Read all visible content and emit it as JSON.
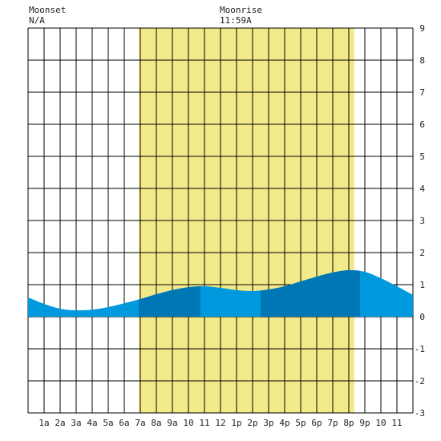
{
  "header": {
    "moonset_label": "Moonset",
    "moonset_time": "N/A",
    "moonrise_label": "Moonrise",
    "moonrise_time": "11:59A"
  },
  "chart_data": {
    "type": "area",
    "title": "",
    "xlabel": "",
    "ylabel": "",
    "x_unit": "hour of day",
    "xlim": [
      -1,
      23
    ],
    "ylim": [
      -3,
      9
    ],
    "x_tick_labels": [
      "1a",
      "2a",
      "3a",
      "4a",
      "5a",
      "6a",
      "7a",
      "8a",
      "9a",
      "10",
      "11",
      "12",
      "1p",
      "2p",
      "3p",
      "4p",
      "5p",
      "6p",
      "7p",
      "8p",
      "9p",
      "10",
      "11"
    ],
    "y_tick_labels": [
      "-3",
      "-2",
      "-1",
      "0",
      "1",
      "2",
      "3",
      "4",
      "5",
      "6",
      "7",
      "8",
      "9"
    ],
    "grid": true,
    "daylight": {
      "start": 5.9,
      "end": 19.35,
      "color": "#f2ea8a"
    },
    "series": [
      {
        "x": [
          -1,
          0,
          1,
          2,
          3,
          4,
          5,
          6,
          7,
          8,
          9,
          10,
          11,
          12,
          13,
          14,
          15,
          16,
          17,
          18,
          19,
          20,
          21,
          22,
          23
        ],
        "y": [
          0.6,
          0.4,
          0.25,
          0.2,
          0.22,
          0.3,
          0.42,
          0.55,
          0.7,
          0.83,
          0.92,
          0.95,
          0.9,
          0.83,
          0.8,
          0.85,
          0.95,
          1.1,
          1.25,
          1.38,
          1.45,
          1.4,
          1.2,
          0.95,
          0.68
        ]
      }
    ],
    "light_color": "#0099dd",
    "dark_color": "#0077b5",
    "dark_bands": [
      [
        5.9,
        9.75
      ],
      [
        13.5,
        19.7
      ]
    ]
  }
}
